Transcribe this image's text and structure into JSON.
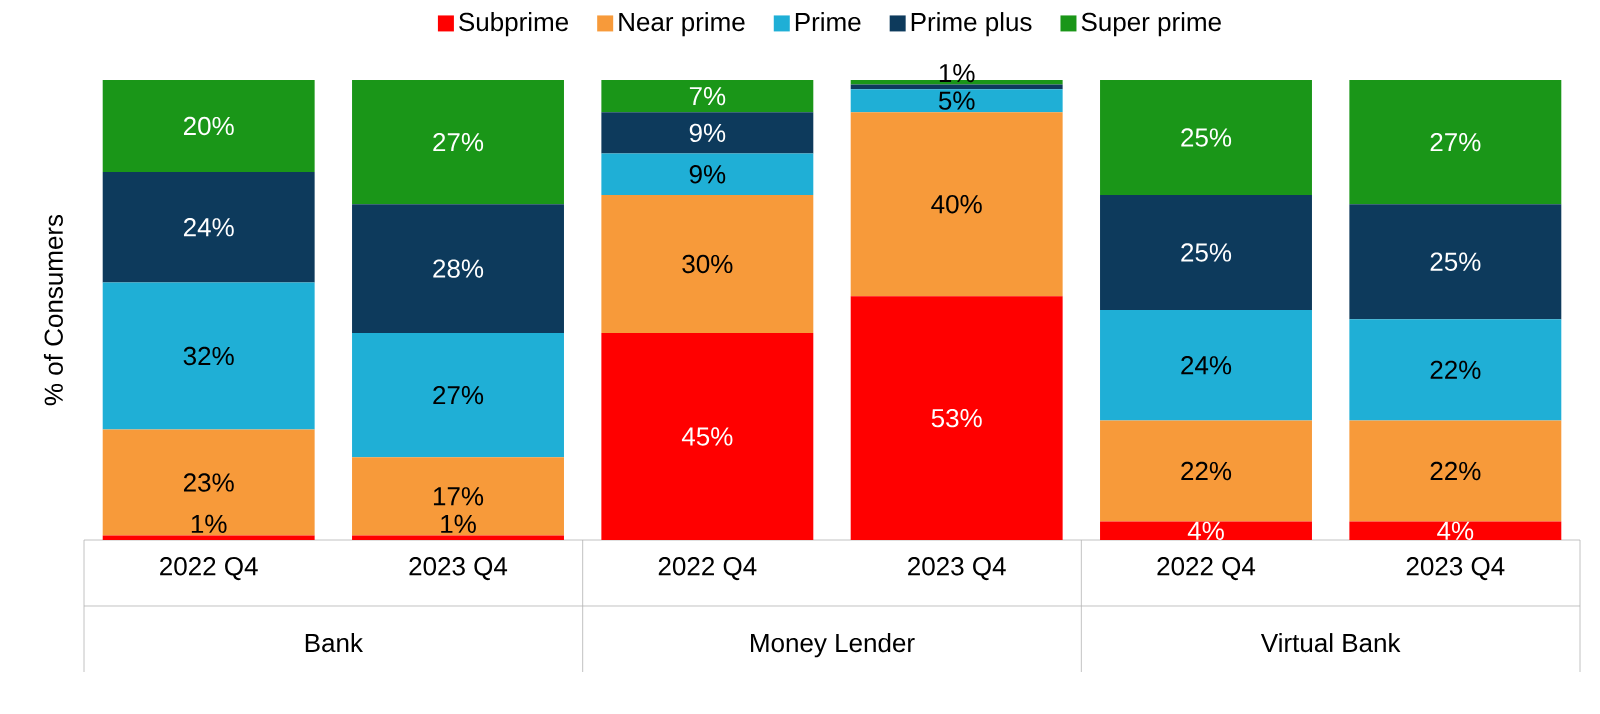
{
  "chart_data": {
    "type": "bar",
    "stacked": true,
    "ylabel": "% of Consumers",
    "legend": "top",
    "tick_labels": "x",
    "ylim": [
      0,
      100
    ],
    "categories": [
      "2022 Q4",
      "2023 Q4",
      "2022 Q4",
      "2023 Q4",
      "2022 Q4",
      "2023 Q4"
    ],
    "series": [
      {
        "name": "Subprime",
        "color": "#ff0000",
        "values": [
          1,
          1,
          45,
          53,
          4,
          4
        ],
        "value_labels": [
          "1%",
          "1%",
          "45%",
          "53%",
          "4%",
          "4%"
        ]
      },
      {
        "name": "Near prime",
        "color": "#f79a3a",
        "values": [
          23,
          17,
          30,
          40,
          22,
          22
        ],
        "value_labels": [
          "23%",
          "17%",
          "30%",
          "40%",
          "22%",
          "22%"
        ]
      },
      {
        "name": "Prime",
        "color": "#1fafd6",
        "values": [
          32,
          27,
          9,
          5,
          24,
          22
        ],
        "value_labels": [
          "32%",
          "27%",
          "9%",
          "5%",
          "24%",
          "22%"
        ]
      },
      {
        "name": "Prime plus",
        "color": "#0d3a5c",
        "values": [
          24,
          28,
          9,
          1,
          25,
          25
        ],
        "value_labels": [
          "24%",
          "28%",
          "9%",
          "1%",
          "25%",
          "25%"
        ]
      },
      {
        "name": "Super prime",
        "color": "#1a9618",
        "values": [
          20,
          27,
          7,
          1,
          25,
          27
        ],
        "value_labels": [
          "20%",
          "27%",
          "7%",
          null,
          "25%",
          "27%"
        ]
      }
    ],
    "annotations": [
      "Bank",
      "Money Lender",
      "Virtual Bank"
    ]
  }
}
